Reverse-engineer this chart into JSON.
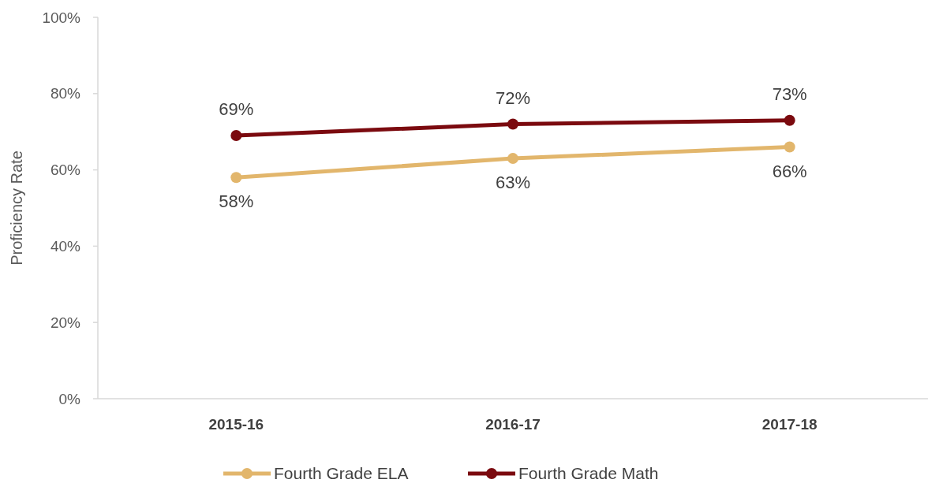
{
  "chart_data": {
    "type": "line",
    "ylabel": "Proficiency Rate",
    "categories": [
      "2015-16",
      "2016-17",
      "2017-18"
    ],
    "series": [
      {
        "name": "Fourth Grade ELA",
        "color": "#e2b66c",
        "values": [
          58,
          63,
          66
        ],
        "value_labels": [
          "58%",
          "63%",
          "66%"
        ]
      },
      {
        "name": "Fourth Grade Math",
        "color": "#7b0a0f",
        "values": [
          69,
          72,
          73
        ],
        "value_labels": [
          "69%",
          "72%",
          "73%"
        ]
      }
    ],
    "ylim": [
      0,
      100
    ],
    "yticks": [
      {
        "value": 0,
        "label": "0%"
      },
      {
        "value": 20,
        "label": "20%"
      },
      {
        "value": 40,
        "label": "40%"
      },
      {
        "value": 60,
        "label": "60%"
      },
      {
        "value": 80,
        "label": "80%"
      },
      {
        "value": 100,
        "label": "100%"
      }
    ],
    "grid": false,
    "legend": "bottom",
    "marker": "circle",
    "line_style": "solid"
  }
}
